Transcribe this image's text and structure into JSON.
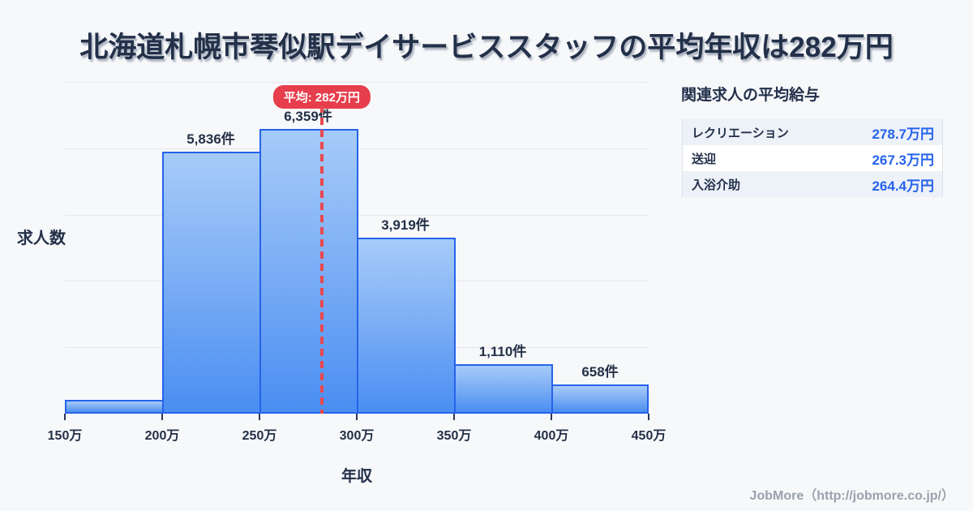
{
  "page": {
    "title": "北海道札幌市琴似駅デイサービススタッフの平均年収は282万円",
    "footer": "JobMore（http://jobmore.co.jp/）",
    "background": "#f7f8fa",
    "accent_navy": "#233049",
    "accent_blue": "#2563eb",
    "accent_red": "#e63e4c",
    "gridline_color": "#e4e6ef"
  },
  "chart_data": {
    "type": "bar",
    "title": "北海道札幌市琴似駅デイサービススタッフの平均年収は282万円",
    "xlabel": "年収",
    "ylabel": "求人数",
    "x_tick_labels": [
      "150万",
      "200万",
      "250万",
      "300万",
      "350万",
      "400万",
      "450万"
    ],
    "categories": [
      "150万-200万",
      "200万-250万",
      "250万-300万",
      "300万-350万",
      "350万-400万",
      "400万-450万"
    ],
    "values": [
      310,
      5836,
      6359,
      3919,
      1110,
      658
    ],
    "data_labels": [
      "",
      "5,836件",
      "6,359件",
      "3,919件",
      "1,110件",
      "658件"
    ],
    "values_note": "first bin shows no printed label; 310 estimated from bar height",
    "x_range": [
      150,
      450
    ],
    "ylim": [
      0,
      7400
    ],
    "grid": "5 horizontal gridlines, no y tick labels",
    "legend": "none",
    "average_line": {
      "value_x": 282,
      "label": "平均: 282万円",
      "style": "red dashed vertical line with red rounded badge on top"
    },
    "bar_fill_gradient": [
      "#a6cbf8",
      "#4a8ef2"
    ],
    "bar_border_color": "#2563eb"
  },
  "related_jobs": {
    "heading": "関連求人の平均給与",
    "rows": [
      {
        "label": "レクリエーション",
        "value": "278.7万円"
      },
      {
        "label": "送迎",
        "value": "267.3万円"
      },
      {
        "label": "入浴介助",
        "value": "264.4万円"
      }
    ]
  }
}
